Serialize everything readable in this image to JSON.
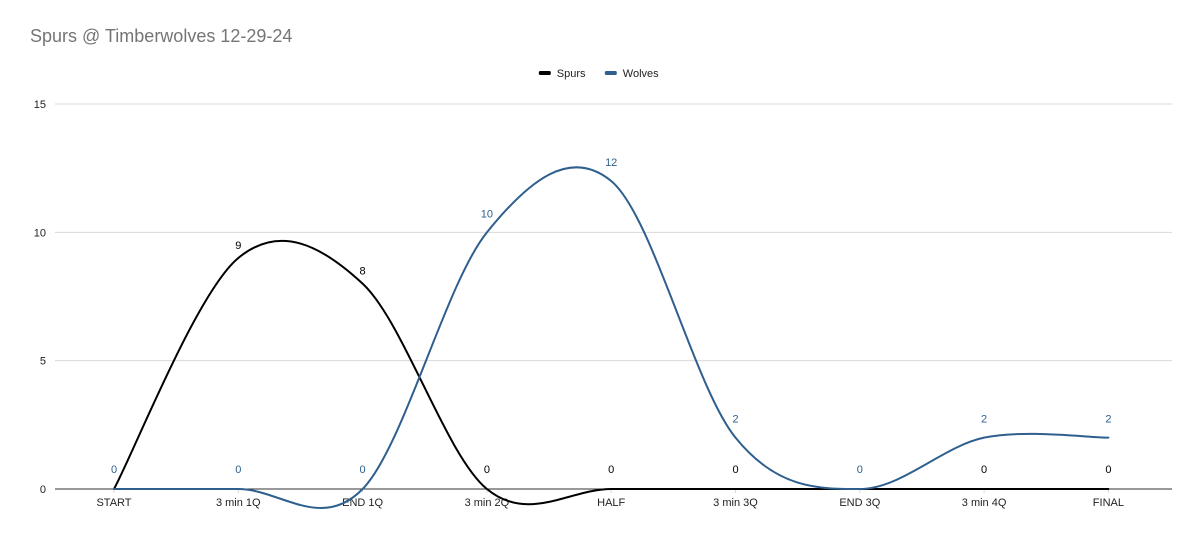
{
  "chart_data": {
    "type": "line",
    "title": "Spurs @ Timberwolves 12-29-24",
    "categories": [
      "START",
      "3 min 1Q",
      "END 1Q",
      "3 min 2Q",
      "HALF",
      "3 min 3Q",
      "END 3Q",
      "3 min 4Q",
      "FINAL"
    ],
    "series": [
      {
        "name": "Spurs",
        "color": "#000000",
        "values": [
          0,
          9,
          8,
          0,
          0,
          0,
          0,
          0,
          0
        ]
      },
      {
        "name": "Wolves",
        "color": "#2e5f8e",
        "values": [
          0,
          0,
          0,
          10,
          12,
          2,
          0,
          2,
          2
        ]
      }
    ],
    "ylim": [
      0,
      15
    ],
    "yticks": [
      0,
      5,
      10,
      15
    ],
    "smooth": true,
    "grid": true,
    "legend": "top-center",
    "data_labels": true
  }
}
